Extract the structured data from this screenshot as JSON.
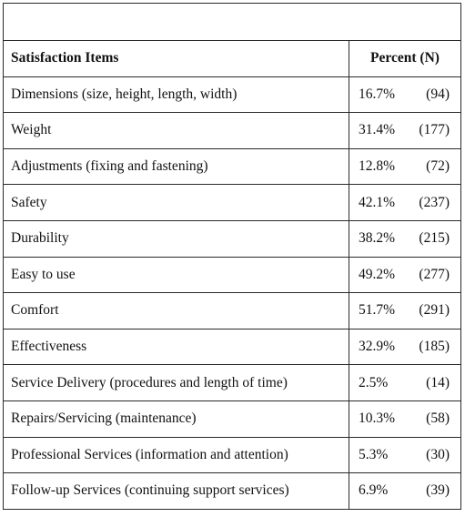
{
  "caption": "",
  "headers": {
    "item": "Satisfaction Items",
    "value": "Percent (N)"
  },
  "rows": [
    {
      "item": "Dimensions (size, height, length, width)",
      "percent": "16.7%",
      "n": "(94)"
    },
    {
      "item": "Weight",
      "percent": "31.4%",
      "n": "(177)"
    },
    {
      "item": "Adjustments (fixing and fastening)",
      "percent": "12.8%",
      "n": "(72)"
    },
    {
      "item": "Safety",
      "percent": "42.1%",
      "n": "(237)"
    },
    {
      "item": "Durability",
      "percent": "38.2%",
      "n": "(215)"
    },
    {
      "item": "Easy to use",
      "percent": "49.2%",
      "n": "(277)"
    },
    {
      "item": "Comfort",
      "percent": "51.7%",
      "n": "(291)"
    },
    {
      "item": "Effectiveness",
      "percent": "32.9%",
      "n": "(185)"
    },
    {
      "item": "Service Delivery (procedures and length of time)",
      "percent": "2.5%",
      "n": "(14)"
    },
    {
      "item": "Repairs/Servicing (maintenance)",
      "percent": "10.3%",
      "n": "(58)"
    },
    {
      "item": "Professional Services (information and attention)",
      "percent": "5.3%",
      "n": "(30)"
    },
    {
      "item": "Follow-up Services (continuing support services)",
      "percent": "6.9%",
      "n": "(39)"
    }
  ]
}
